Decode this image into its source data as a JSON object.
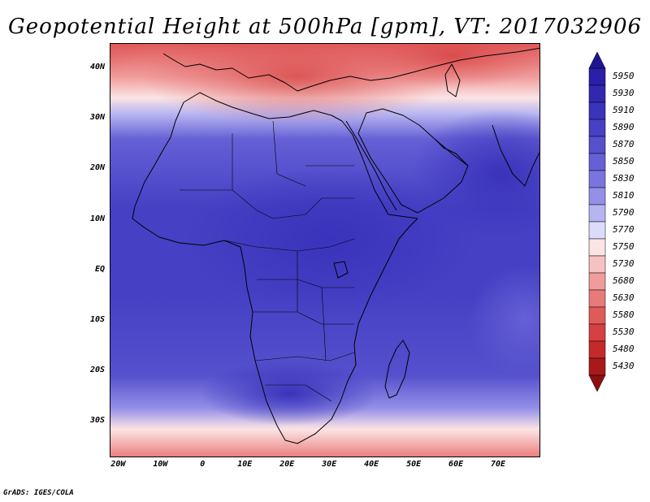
{
  "title": "Geopotential Height at 500hPa [gpm], VT: 2017032906",
  "footer": "GrADS: IGES/COLA",
  "map": {
    "lon_range": [
      -22,
      80
    ],
    "lat_range": [
      -37,
      45
    ],
    "lat_ticks": [
      {
        "value": 40,
        "label": "40N"
      },
      {
        "value": 30,
        "label": "30N"
      },
      {
        "value": 20,
        "label": "20N"
      },
      {
        "value": 10,
        "label": "10N"
      },
      {
        "value": 0,
        "label": "EQ"
      },
      {
        "value": -10,
        "label": "10S"
      },
      {
        "value": -20,
        "label": "20S"
      },
      {
        "value": -30,
        "label": "30S"
      }
    ],
    "lon_ticks": [
      {
        "value": -20,
        "label": "20W"
      },
      {
        "value": -10,
        "label": "10W"
      },
      {
        "value": 0,
        "label": "0"
      },
      {
        "value": 10,
        "label": "10E"
      },
      {
        "value": 20,
        "label": "20E"
      },
      {
        "value": 30,
        "label": "30E"
      },
      {
        "value": 40,
        "label": "40E"
      },
      {
        "value": 50,
        "label": "50E"
      },
      {
        "value": 60,
        "label": "60E"
      },
      {
        "value": 70,
        "label": "70E"
      }
    ]
  },
  "colorbar": {
    "levels": [
      {
        "label": "5950",
        "color": "#2a1fa8"
      },
      {
        "label": "5930",
        "color": "#3228b0"
      },
      {
        "label": "5910",
        "color": "#3a33bb"
      },
      {
        "label": "5890",
        "color": "#4540c4"
      },
      {
        "label": "5870",
        "color": "#5550cc"
      },
      {
        "label": "5850",
        "color": "#6560d5"
      },
      {
        "label": "5830",
        "color": "#7a75de"
      },
      {
        "label": "5810",
        "color": "#9490e8"
      },
      {
        "label": "5790",
        "color": "#b6b4f1"
      },
      {
        "label": "5770",
        "color": "#dcdcfa"
      },
      {
        "label": "5750",
        "color": "#fbe4e4"
      },
      {
        "label": "5730",
        "color": "#f6c1c1"
      },
      {
        "label": "5680",
        "color": "#f09c9c"
      },
      {
        "label": "5630",
        "color": "#e97a7a"
      },
      {
        "label": "5580",
        "color": "#e05a5a"
      },
      {
        "label": "5530",
        "color": "#d64040"
      },
      {
        "label": "5480",
        "color": "#c52a2a"
      },
      {
        "label": "5430",
        "color": "#a81a1a"
      }
    ]
  }
}
